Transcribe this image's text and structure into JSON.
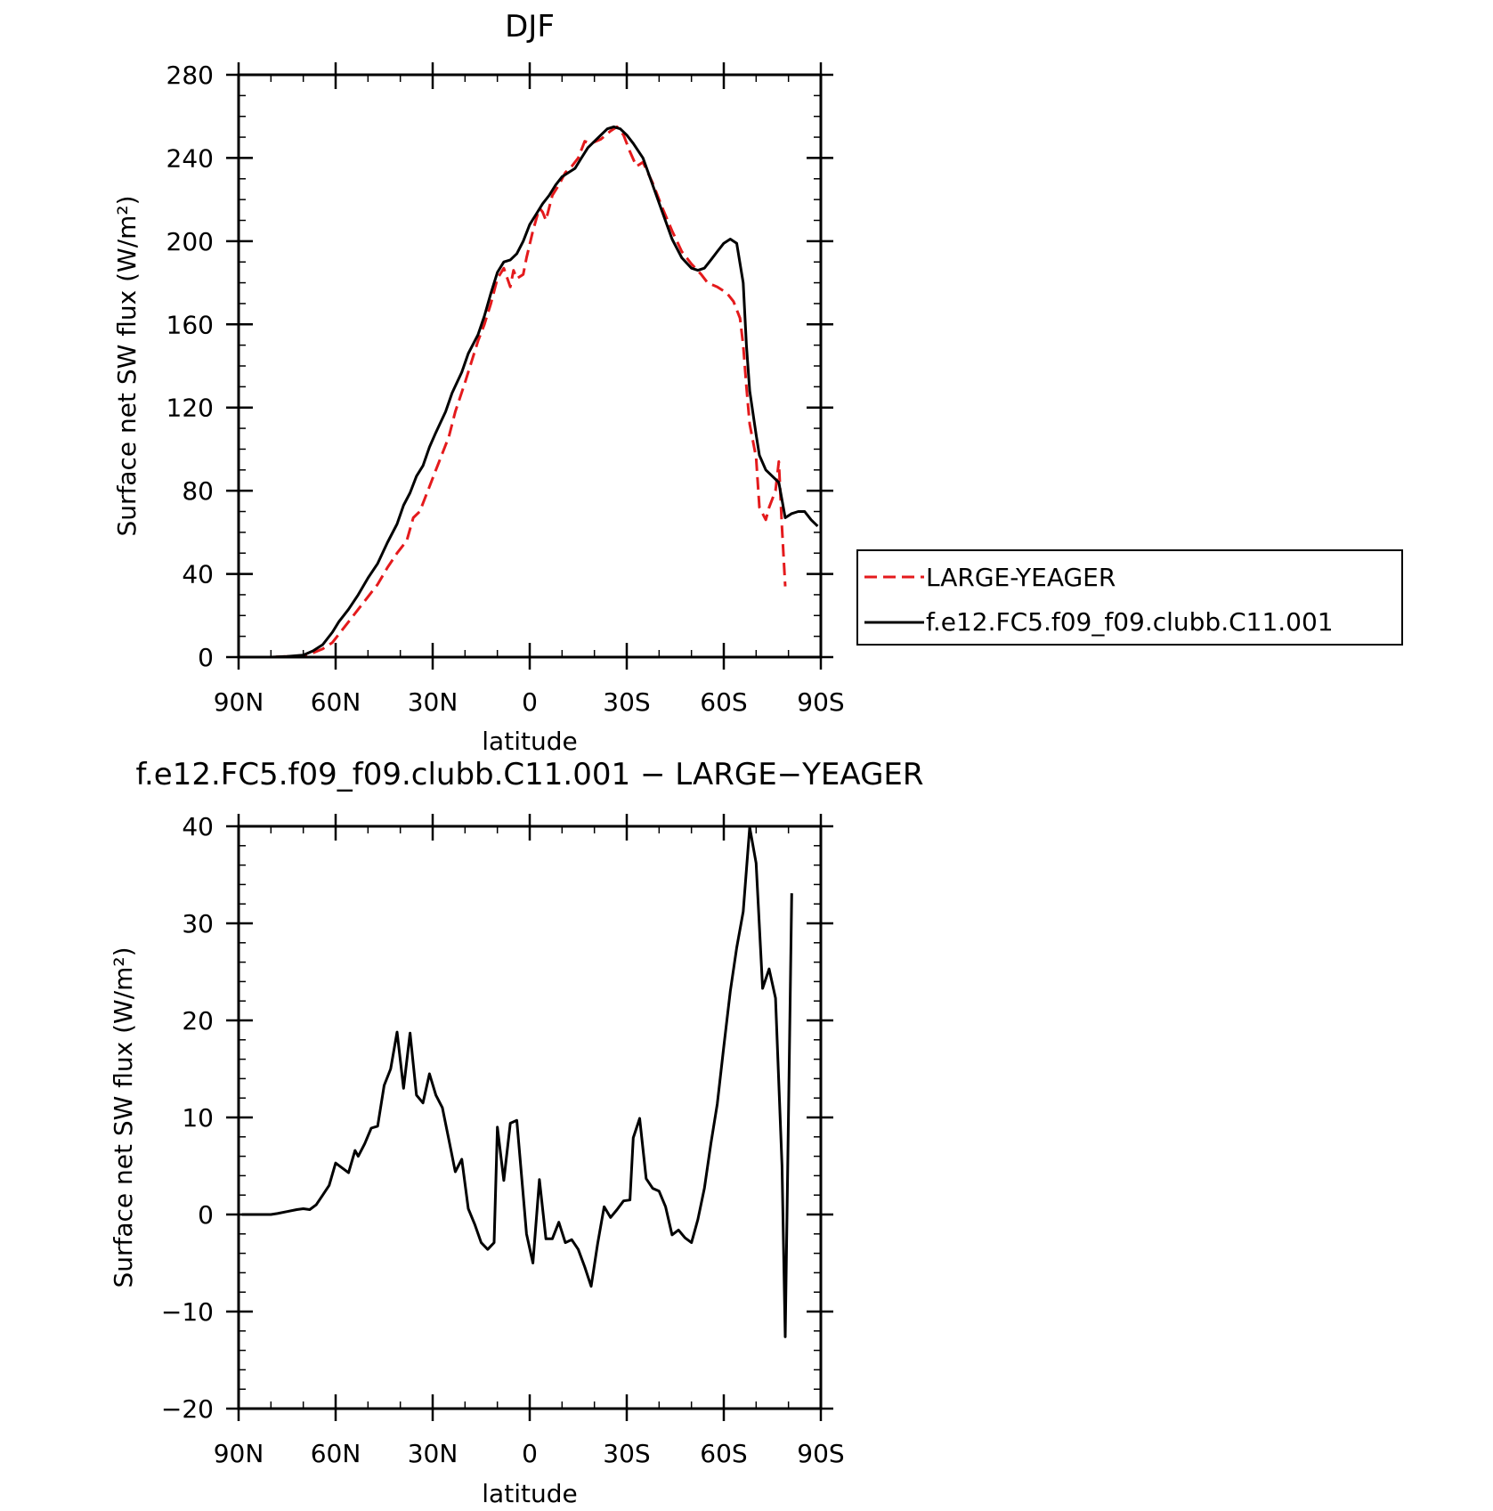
{
  "chart_data": [
    {
      "type": "line",
      "title": "DJF",
      "xlabel": "latitude",
      "ylabel": "Surface net SW flux (W/m²)",
      "xlim": [
        -90,
        90
      ],
      "ylim": [
        0,
        280
      ],
      "x_ticks": [
        -90,
        -60,
        -30,
        0,
        30,
        60,
        90
      ],
      "x_tick_labels": [
        "90N",
        "60N",
        "30N",
        "0",
        "30S",
        "60S",
        "90S"
      ],
      "y_ticks": [
        0,
        40,
        80,
        120,
        160,
        200,
        240,
        280
      ],
      "y_tick_labels": [
        "0",
        "40",
        "80",
        "120",
        "160",
        "200",
        "240",
        "280"
      ],
      "legend_position": "right",
      "series": [
        {
          "name": "LARGE-YEAGER",
          "color": "#e41a1c",
          "dash": "dashed",
          "points": [
            [
              -90,
              0
            ],
            [
              -80,
              0
            ],
            [
              -75,
              0.3
            ],
            [
              -70,
              0.8
            ],
            [
              -67,
              2
            ],
            [
              -64,
              4
            ],
            [
              -61,
              7
            ],
            [
              -58,
              13
            ],
            [
              -55,
              19
            ],
            [
              -53,
              23
            ],
            [
              -50,
              29
            ],
            [
              -47,
              35
            ],
            [
              -44,
              43
            ],
            [
              -41,
              50
            ],
            [
              -38,
              56
            ],
            [
              -36,
              67
            ],
            [
              -34,
              70
            ],
            [
              -31,
              82
            ],
            [
              -29,
              90
            ],
            [
              -28,
              94
            ],
            [
              -25,
              106
            ],
            [
              -23,
              118
            ],
            [
              -20,
              132
            ],
            [
              -18,
              142
            ],
            [
              -16,
              152
            ],
            [
              -14,
              160
            ],
            [
              -12,
              170
            ],
            [
              -10,
              182
            ],
            [
              -8,
              187
            ],
            [
              -6,
              178
            ],
            [
              -5,
              186
            ],
            [
              -4,
              182
            ],
            [
              -2,
              184
            ],
            [
              -1,
              192
            ],
            [
              1,
              205
            ],
            [
              3,
              216
            ],
            [
              4,
              214
            ],
            [
              5,
              210
            ],
            [
              7,
              222
            ],
            [
              9,
              227
            ],
            [
              11,
              233
            ],
            [
              13,
              236
            ],
            [
              15,
              240
            ],
            [
              17,
              248
            ],
            [
              19,
              247
            ],
            [
              22,
              249
            ],
            [
              25,
              253
            ],
            [
              27,
              255
            ],
            [
              29,
              251
            ],
            [
              31,
              243
            ],
            [
              33,
              236
            ],
            [
              35,
              238
            ],
            [
              38,
              228
            ],
            [
              41,
              216
            ],
            [
              44,
              205
            ],
            [
              47,
              195
            ],
            [
              50,
              189
            ],
            [
              53,
              184
            ],
            [
              55,
              180
            ],
            [
              58,
              178
            ],
            [
              61,
              175
            ],
            [
              63,
              171
            ],
            [
              65,
              163
            ],
            [
              66,
              150
            ],
            [
              67,
              130
            ],
            [
              68,
              112
            ],
            [
              70,
              96
            ],
            [
              71,
              72
            ],
            [
              73,
              66
            ],
            [
              74,
              72
            ],
            [
              76,
              80
            ],
            [
              77,
              94
            ],
            [
              78,
              62
            ],
            [
              79,
              34
            ]
          ]
        },
        {
          "name": "f.e12.FC5.f09_f09.clubb.C11.001",
          "color": "#000000",
          "dash": "solid",
          "points": [
            [
              -90,
              0
            ],
            [
              -80,
              0
            ],
            [
              -75,
              0.3
            ],
            [
              -70,
              1
            ],
            [
              -67,
              3
            ],
            [
              -64,
              6
            ],
            [
              -61,
              12
            ],
            [
              -59,
              17
            ],
            [
              -56,
              23
            ],
            [
              -53,
              30
            ],
            [
              -50,
              38
            ],
            [
              -47,
              45
            ],
            [
              -44,
              55
            ],
            [
              -41,
              64
            ],
            [
              -39,
              73
            ],
            [
              -37,
              79
            ],
            [
              -35,
              87
            ],
            [
              -33,
              92
            ],
            [
              -31,
              101
            ],
            [
              -29,
              108
            ],
            [
              -26,
              118
            ],
            [
              -24,
              127
            ],
            [
              -21,
              137
            ],
            [
              -19,
              146
            ],
            [
              -16,
              155
            ],
            [
              -14,
              164
            ],
            [
              -12,
              175
            ],
            [
              -10,
              185
            ],
            [
              -8,
              190
            ],
            [
              -6,
              191
            ],
            [
              -4,
              194
            ],
            [
              -2,
              200
            ],
            [
              0,
              208
            ],
            [
              2,
              213
            ],
            [
              4,
              218
            ],
            [
              6,
              222
            ],
            [
              8,
              227
            ],
            [
              10,
              231
            ],
            [
              12,
              233
            ],
            [
              14,
              235
            ],
            [
              16,
              240
            ],
            [
              18,
              245
            ],
            [
              20,
              248
            ],
            [
              22,
              251
            ],
            [
              24,
              254
            ],
            [
              26,
              255
            ],
            [
              28,
              254
            ],
            [
              30,
              251
            ],
            [
              32,
              247
            ],
            [
              35,
              240
            ],
            [
              38,
              227
            ],
            [
              41,
              214
            ],
            [
              44,
              201
            ],
            [
              47,
              192
            ],
            [
              50,
              187
            ],
            [
              52,
              186
            ],
            [
              54,
              187
            ],
            [
              56,
              191
            ],
            [
              58,
              195
            ],
            [
              60,
              199
            ],
            [
              62,
              201
            ],
            [
              64,
              199
            ],
            [
              66,
              180
            ],
            [
              67,
              150
            ],
            [
              68,
              128
            ],
            [
              70,
              107
            ],
            [
              71,
              97
            ],
            [
              73,
              90
            ],
            [
              75,
              87
            ],
            [
              77,
              84
            ],
            [
              79,
              67
            ],
            [
              81,
              69
            ],
            [
              83,
              70
            ],
            [
              85,
              70
            ],
            [
              87,
              66
            ],
            [
              89,
              63
            ]
          ]
        }
      ]
    },
    {
      "type": "line",
      "title": "f.e12.FC5.f09_f09.clubb.C11.001 − LARGE−YEAGER",
      "xlabel": "latitude",
      "ylabel": "Surface net SW flux (W/m²)",
      "xlim": [
        -90,
        90
      ],
      "ylim": [
        -20,
        40
      ],
      "x_ticks": [
        -90,
        -60,
        -30,
        0,
        30,
        60,
        90
      ],
      "x_tick_labels": [
        "90N",
        "60N",
        "30N",
        "0",
        "30S",
        "60S",
        "90S"
      ],
      "y_ticks": [
        -20,
        -10,
        0,
        10,
        20,
        30,
        40
      ],
      "y_tick_labels": [
        "−20",
        "−10",
        "0",
        "10",
        "20",
        "30",
        "40"
      ],
      "series": [
        {
          "color": "#000000",
          "dash": "solid",
          "points": [
            [
              -89,
              0
            ],
            [
              -80,
              0
            ],
            [
              -78,
              0.1
            ],
            [
              -75,
              0.3
            ],
            [
              -72,
              0.5
            ],
            [
              -70,
              0.6
            ],
            [
              -68,
              0.5
            ],
            [
              -66,
              1
            ],
            [
              -64,
              2
            ],
            [
              -62,
              3
            ],
            [
              -60,
              5.3
            ],
            [
              -58,
              4.8
            ],
            [
              -56,
              4.3
            ],
            [
              -54,
              6.6
            ],
            [
              -53,
              6
            ],
            [
              -51,
              7.3
            ],
            [
              -49,
              8.9
            ],
            [
              -47,
              9.1
            ],
            [
              -45,
              13.3
            ],
            [
              -43,
              15
            ],
            [
              -41,
              18.8
            ],
            [
              -39,
              13
            ],
            [
              -37,
              18.7
            ],
            [
              -35,
              12.3
            ],
            [
              -33,
              11.5
            ],
            [
              -31,
              14.5
            ],
            [
              -29,
              12.3
            ],
            [
              -27,
              11
            ],
            [
              -25,
              7.7
            ],
            [
              -23,
              4.4
            ],
            [
              -21,
              5.7
            ],
            [
              -19,
              0.6
            ],
            [
              -17,
              -1
            ],
            [
              -15,
              -2.9
            ],
            [
              -13,
              -3.6
            ],
            [
              -11,
              -2.9
            ],
            [
              -10,
              9
            ],
            [
              -8,
              3.5
            ],
            [
              -6,
              9.4
            ],
            [
              -4,
              9.7
            ],
            [
              -2,
              2
            ],
            [
              -1,
              -2
            ],
            [
              1,
              -5
            ],
            [
              3,
              3.6
            ],
            [
              5,
              -2.5
            ],
            [
              7,
              -2.5
            ],
            [
              9,
              -0.8
            ],
            [
              11,
              -2.9
            ],
            [
              13,
              -2.6
            ],
            [
              15,
              -3.6
            ],
            [
              17,
              -5.4
            ],
            [
              19,
              -7.4
            ],
            [
              21,
              -3
            ],
            [
              23,
              0.8
            ],
            [
              25,
              -0.3
            ],
            [
              27,
              0.5
            ],
            [
              29,
              1.4
            ],
            [
              31,
              1.5
            ],
            [
              32,
              7.9
            ],
            [
              34,
              9.9
            ],
            [
              36,
              3.7
            ],
            [
              38,
              2.7
            ],
            [
              40,
              2.4
            ],
            [
              42,
              0.8
            ],
            [
              44,
              -2.1
            ],
            [
              46,
              -1.6
            ],
            [
              48,
              -2.4
            ],
            [
              50,
              -2.9
            ],
            [
              52,
              -0.5
            ],
            [
              54,
              2.7
            ],
            [
              56,
              7.3
            ],
            [
              58,
              11.4
            ],
            [
              60,
              17.3
            ],
            [
              62,
              23
            ],
            [
              64,
              27.5
            ],
            [
              66,
              31.2
            ],
            [
              68,
              39.9
            ],
            [
              70,
              36.2
            ],
            [
              72,
              23.3
            ],
            [
              74,
              25.3
            ],
            [
              76,
              22.3
            ],
            [
              78,
              5
            ],
            [
              79,
              -12.6
            ],
            [
              81,
              33.1
            ]
          ]
        }
      ]
    }
  ]
}
